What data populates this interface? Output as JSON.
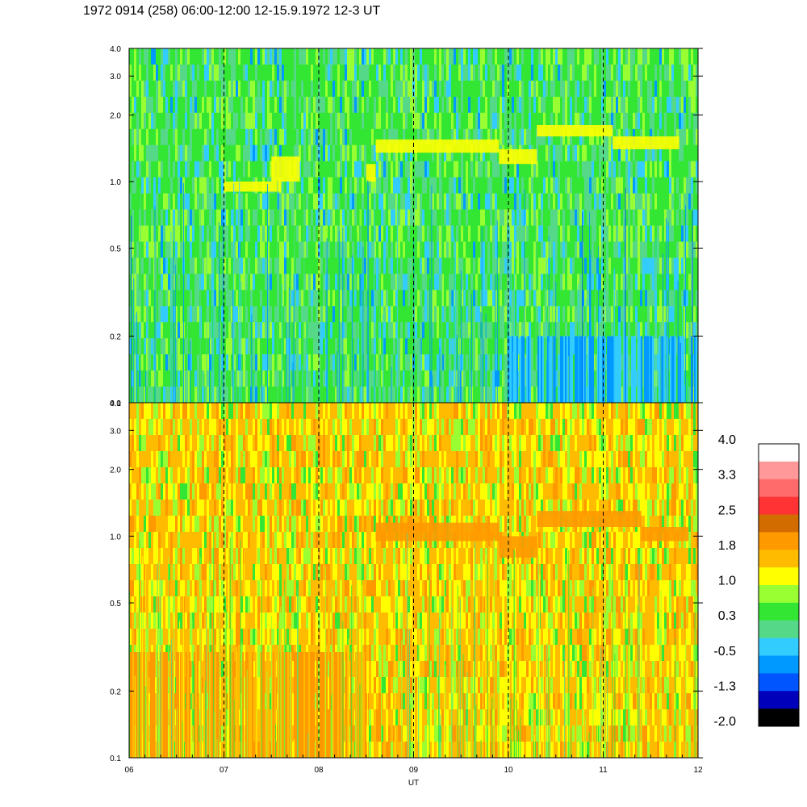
{
  "header": {
    "title": "1972 0914 (258) 06:00-12:00 12-15.9.1972  12-3 UT"
  },
  "chart_data": {
    "type": "heatmap",
    "title": "1972 0914 (258) 06:00-12:00 12-15.9.1972  12-3 UT",
    "xlabel": "UT",
    "x_ticks": [
      "06",
      "07",
      "08",
      "09",
      "10",
      "11",
      "12"
    ],
    "x_range": [
      6,
      12
    ],
    "y_scale": "log",
    "y_range": [
      0.1,
      4.0
    ],
    "y_ticks": [
      "4.0",
      "3.0",
      "2.0",
      "1.0",
      "0.5",
      "0.2",
      "0.1"
    ],
    "y_tick_values": [
      4.0,
      3.0,
      2.0,
      1.0,
      0.5,
      0.2,
      0.1
    ],
    "grid": "dashed vertical lines at each hour",
    "panels": [
      {
        "name": "upper",
        "dominant_levels": [
          0.3,
          0.7,
          -0.3
        ],
        "bands": [
          {
            "x": [
              7.0,
              7.6
            ],
            "y": [
              0.9,
              1.0
            ],
            "level": 1.0
          },
          {
            "x": [
              7.5,
              7.8
            ],
            "y": [
              1.0,
              1.3
            ],
            "level": 1.0
          },
          {
            "x": [
              8.5,
              8.6
            ],
            "y": [
              1.0,
              1.2
            ],
            "level": 1.0
          },
          {
            "x": [
              8.6,
              9.9
            ],
            "y": [
              1.35,
              1.55
            ],
            "level": 1.0
          },
          {
            "x": [
              9.9,
              10.3
            ],
            "y": [
              1.2,
              1.4
            ],
            "level": 1.0
          },
          {
            "x": [
              10.3,
              11.1
            ],
            "y": [
              1.6,
              1.8
            ],
            "level": 1.0
          },
          {
            "x": [
              11.1,
              11.8
            ],
            "y": [
              1.4,
              1.6
            ],
            "level": 1.0
          }
        ],
        "region": {
          "x": [
            10.0,
            12.0
          ],
          "y": [
            0.1,
            0.2
          ],
          "level": -0.5
        }
      },
      {
        "name": "lower",
        "dominant_levels": [
          1.6,
          1.2,
          0.7
        ],
        "bands": [
          {
            "x": [
              8.6,
              9.9
            ],
            "y": [
              0.95,
              1.15
            ],
            "level": 1.8
          },
          {
            "x": [
              9.9,
              10.3
            ],
            "y": [
              0.8,
              1.0
            ],
            "level": 1.8
          },
          {
            "x": [
              10.3,
              11.4
            ],
            "y": [
              1.1,
              1.3
            ],
            "level": 1.8
          },
          {
            "x": [
              11.4,
              11.9
            ],
            "y": [
              0.95,
              1.1
            ],
            "level": 1.8
          }
        ],
        "region": {
          "x": [
            6.0,
            8.5
          ],
          "y": [
            0.1,
            0.3
          ],
          "level": 1.8
        }
      }
    ],
    "colorbar": {
      "labels": [
        "4.0",
        "3.3",
        "2.5",
        "1.8",
        "1.0",
        "0.3",
        "-0.5",
        "-1.3",
        "-2.0"
      ],
      "colors": [
        "#ffffff",
        "#ff9999",
        "#ff6a6a",
        "#ff3333",
        "#d26b00",
        "#ff9900",
        "#ffbb00",
        "#ffff00",
        "#99ff33",
        "#33e633",
        "#55d988",
        "#33ccff",
        "#0099ff",
        "#0055ff",
        "#0000bb",
        "#000000"
      ]
    }
  }
}
